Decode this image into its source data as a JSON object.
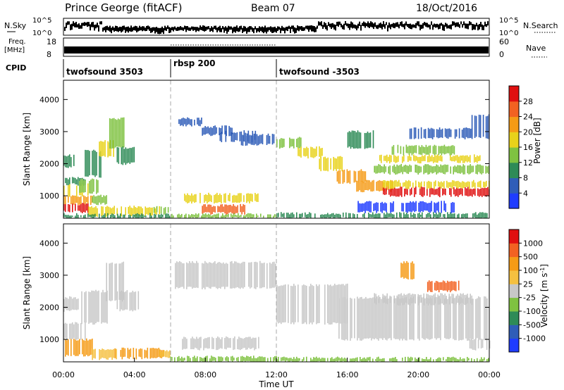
{
  "header": {
    "station": "Prince George (fitACF)",
    "beam": "Beam 07",
    "date": "18/Oct/2016"
  },
  "strips": {
    "nsky": {
      "label": "N.Sky",
      "ticks": [
        "10^5",
        "10^0"
      ],
      "right_label": "N.Search",
      "right_ticks": [
        "10^5",
        "10^0"
      ]
    },
    "freq": {
      "label_top": "Freq.",
      "label_bottom": "[MHz]",
      "ticks": [
        "18",
        "8"
      ],
      "right_label": "Nave",
      "right_ticks": [
        "60",
        "0"
      ]
    },
    "cpid": {
      "label": "CPID",
      "segments": [
        {
          "name": "twofsound 3503",
          "start_hour": 0,
          "end_hour": 6
        },
        {
          "name": "rbsp 200",
          "start_hour": 6,
          "end_hour": 12
        },
        {
          "name": "twofsound -3503",
          "start_hour": 12,
          "end_hour": 24
        }
      ]
    }
  },
  "chart_data": [
    {
      "type": "heatmap",
      "name": "power",
      "ylabel": "Slant Range [km]",
      "xlim_hours": [
        0,
        24
      ],
      "ylim": [
        300,
        4600
      ],
      "yticks": [
        1000,
        2000,
        3000,
        4000
      ],
      "colorbar": {
        "label": "Power [dB]",
        "ticks": [
          "4",
          "8",
          "12",
          "16",
          "20",
          "24",
          "28"
        ],
        "colors": [
          "#1f3cff",
          "#2f5db8",
          "#2e8b57",
          "#7fc241",
          "#e8d21a",
          "#f59b16",
          "#f26222",
          "#e01010"
        ]
      },
      "bands": [
        {
          "x0": 0.0,
          "x1": 1.4,
          "y0": 500,
          "y1": 750,
          "level": 7
        },
        {
          "x0": 0.0,
          "x1": 1.6,
          "y0": 750,
          "y1": 1000,
          "level": 5
        },
        {
          "x0": 0.0,
          "x1": 1.4,
          "y0": 1000,
          "y1": 1350,
          "level": 4
        },
        {
          "x0": 0.0,
          "x1": 1.2,
          "y0": 1350,
          "y1": 1550,
          "level": 2
        },
        {
          "x0": 0.0,
          "x1": 0.6,
          "y0": 1900,
          "y1": 2250,
          "level": 2
        },
        {
          "x0": 1.4,
          "x1": 2.6,
          "y0": 350,
          "y1": 650,
          "level": 4
        },
        {
          "x0": 1.6,
          "x1": 2.4,
          "y0": 750,
          "y1": 1000,
          "level": 3
        },
        {
          "x0": 0.8,
          "x1": 2.0,
          "y0": 1100,
          "y1": 1500,
          "level": 3
        },
        {
          "x0": 1.2,
          "x1": 2.2,
          "y0": 1600,
          "y1": 2400,
          "level": 2
        },
        {
          "x0": 2.0,
          "x1": 2.8,
          "y0": 2200,
          "y1": 2700,
          "level": 4
        },
        {
          "x0": 2.5,
          "x1": 3.4,
          "y0": 2500,
          "y1": 3400,
          "level": 3
        },
        {
          "x0": 3.0,
          "x1": 4.0,
          "y0": 2000,
          "y1": 2500,
          "level": 2
        },
        {
          "x0": 2.6,
          "x1": 5.6,
          "y0": 400,
          "y1": 650,
          "level": 4
        },
        {
          "x0": 5.0,
          "x1": 5.9,
          "y0": 450,
          "y1": 650,
          "level": 3
        },
        {
          "x0": 0.0,
          "x1": 6.0,
          "y0": 300,
          "y1": 420,
          "level": 2
        },
        {
          "x0": 6.4,
          "x1": 7.8,
          "y0": 3200,
          "y1": 3400,
          "level": 1
        },
        {
          "x0": 7.8,
          "x1": 9.5,
          "y0": 2900,
          "y1": 3150,
          "level": 1
        },
        {
          "x0": 8.8,
          "x1": 10.8,
          "y0": 2700,
          "y1": 3000,
          "level": 1
        },
        {
          "x0": 10.0,
          "x1": 12.0,
          "y0": 2600,
          "y1": 2900,
          "level": 1
        },
        {
          "x0": 6.8,
          "x1": 11.0,
          "y0": 800,
          "y1": 1050,
          "level": 4
        },
        {
          "x0": 7.8,
          "x1": 10.2,
          "y0": 450,
          "y1": 700,
          "level": 6
        },
        {
          "x0": 6.0,
          "x1": 12.0,
          "y0": 300,
          "y1": 420,
          "level": 3
        },
        {
          "x0": 12.0,
          "x1": 13.4,
          "y0": 2500,
          "y1": 2800,
          "level": 3
        },
        {
          "x0": 13.2,
          "x1": 14.6,
          "y0": 2200,
          "y1": 2500,
          "level": 4
        },
        {
          "x0": 14.4,
          "x1": 15.8,
          "y0": 1800,
          "y1": 2200,
          "level": 4
        },
        {
          "x0": 15.4,
          "x1": 17.0,
          "y0": 1400,
          "y1": 1800,
          "level": 5
        },
        {
          "x0": 16.5,
          "x1": 18.5,
          "y0": 1150,
          "y1": 1450,
          "level": 5
        },
        {
          "x0": 18.0,
          "x1": 24.0,
          "y0": 1000,
          "y1": 1250,
          "level": 7
        },
        {
          "x0": 18.0,
          "x1": 24.0,
          "y0": 1250,
          "y1": 1450,
          "level": 4
        },
        {
          "x0": 17.5,
          "x1": 24.0,
          "y0": 1700,
          "y1": 1950,
          "level": 3
        },
        {
          "x0": 17.8,
          "x1": 23.5,
          "y0": 2050,
          "y1": 2250,
          "level": 4
        },
        {
          "x0": 18.5,
          "x1": 22.0,
          "y0": 2300,
          "y1": 2550,
          "level": 3
        },
        {
          "x0": 16.0,
          "x1": 17.5,
          "y0": 2500,
          "y1": 3000,
          "level": 2
        },
        {
          "x0": 19.5,
          "x1": 23.0,
          "y0": 2800,
          "y1": 3100,
          "level": 1
        },
        {
          "x0": 23.0,
          "x1": 24.0,
          "y0": 2800,
          "y1": 3500,
          "level": 1
        },
        {
          "x0": 12.0,
          "x1": 24.0,
          "y0": 300,
          "y1": 450,
          "level": 2
        },
        {
          "x0": 16.5,
          "x1": 22.0,
          "y0": 500,
          "y1": 800,
          "level": 0
        }
      ]
    },
    {
      "type": "heatmap",
      "name": "velocity",
      "ylabel": "Slant Range [km]",
      "xlim_hours": [
        0,
        24
      ],
      "ylim": [
        300,
        4600
      ],
      "yticks": [
        1000,
        2000,
        3000,
        4000
      ],
      "xticks": [
        "00:00",
        "04:00",
        "08:00",
        "12:00",
        "16:00",
        "20:00",
        "00:00"
      ],
      "xlabel": "Time UT",
      "colorbar": {
        "label": "Velocity [m s^-1]",
        "ticks": [
          "1000",
          "500",
          "100",
          "25",
          "-25",
          "-100",
          "-500",
          "-1000"
        ],
        "colors": [
          "#1f3cff",
          "#2f5db8",
          "#2e8b57",
          "#7fc241",
          "#c8c8c8",
          "#f5c040",
          "#f59b16",
          "#f26222",
          "#e01010"
        ]
      },
      "bands": [
        {
          "x0": 0.0,
          "x1": 1.8,
          "y0": 500,
          "y1": 1000,
          "level": 6
        },
        {
          "x0": 0.0,
          "x1": 1.2,
          "y0": 1000,
          "y1": 1500,
          "level": 4
        },
        {
          "x0": 0.0,
          "x1": 0.8,
          "y0": 1900,
          "y1": 2300,
          "level": 4
        },
        {
          "x0": 1.6,
          "x1": 3.0,
          "y0": 400,
          "y1": 700,
          "level": 5
        },
        {
          "x0": 1.0,
          "x1": 2.5,
          "y0": 1500,
          "y1": 2500,
          "level": 4
        },
        {
          "x0": 2.4,
          "x1": 3.4,
          "y0": 2200,
          "y1": 3400,
          "level": 4
        },
        {
          "x0": 3.0,
          "x1": 4.2,
          "y0": 1900,
          "y1": 2500,
          "level": 4
        },
        {
          "x0": 2.8,
          "x1": 5.6,
          "y0": 420,
          "y1": 700,
          "level": 6
        },
        {
          "x0": 5.4,
          "x1": 6.0,
          "y0": 450,
          "y1": 650,
          "level": 5
        },
        {
          "x0": 6.2,
          "x1": 12.0,
          "y0": 2600,
          "y1": 3400,
          "level": 4
        },
        {
          "x0": 6.6,
          "x1": 11.0,
          "y0": 700,
          "y1": 1050,
          "level": 4
        },
        {
          "x0": 6.0,
          "x1": 12.0,
          "y0": 300,
          "y1": 450,
          "level": 3
        },
        {
          "x0": 12.0,
          "x1": 16.0,
          "y0": 1500,
          "y1": 2700,
          "level": 4
        },
        {
          "x0": 15.5,
          "x1": 24.0,
          "y0": 1000,
          "y1": 2300,
          "level": 4
        },
        {
          "x0": 17.5,
          "x1": 23.0,
          "y0": 2100,
          "y1": 2400,
          "level": 4
        },
        {
          "x0": 19.0,
          "x1": 19.8,
          "y0": 2900,
          "y1": 3400,
          "level": 6
        },
        {
          "x0": 20.5,
          "x1": 22.3,
          "y0": 2500,
          "y1": 2800,
          "level": 7
        },
        {
          "x0": 22.8,
          "x1": 24.0,
          "y0": 700,
          "y1": 1000,
          "level": 4
        },
        {
          "x0": 12.0,
          "x1": 24.0,
          "y0": 300,
          "y1": 420,
          "level": 3
        }
      ]
    }
  ]
}
